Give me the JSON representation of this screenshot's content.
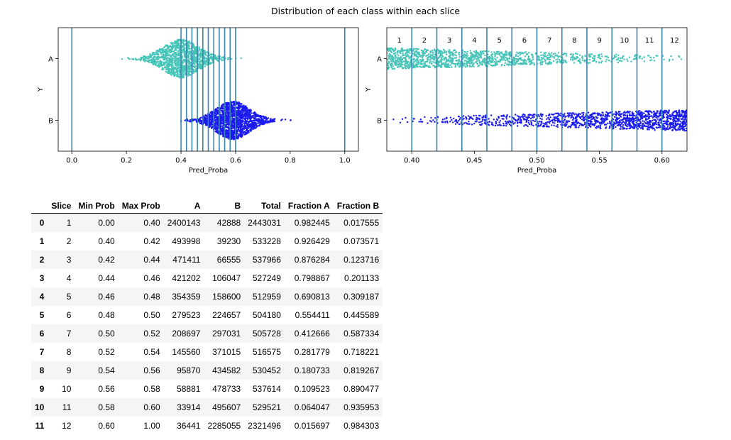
{
  "figure": {
    "title": "Distribution of each class within each slice"
  },
  "chart_data": [
    {
      "type": "scatter",
      "subtype": "swarm",
      "xlabel": "Pred_Proba",
      "ylabel": "Y",
      "xlim": [
        -0.05,
        1.05
      ],
      "xticks": [
        0.0,
        0.2,
        0.4,
        0.6,
        0.8,
        1.0
      ],
      "xtick_labels": [
        "0.0",
        "0.2",
        "0.4",
        "0.6",
        "0.8",
        "1.0"
      ],
      "categories": [
        "A",
        "B"
      ],
      "series": [
        {
          "name": "A",
          "color": "#46c4b8",
          "x_range": [
            0.14,
            0.63
          ],
          "center": 0.4
        },
        {
          "name": "B",
          "color": "#1a1af0",
          "x_range": [
            0.31,
            0.91
          ],
          "center": 0.59
        }
      ],
      "vlines": [
        0.0,
        0.4,
        0.42,
        0.44,
        0.46,
        0.48,
        0.5,
        0.52,
        0.54,
        0.56,
        0.58,
        0.6,
        1.0
      ],
      "vline_color": "#3b86b0",
      "grid": false
    },
    {
      "type": "scatter",
      "subtype": "swarm",
      "xlabel": "Pred_Proba",
      "ylabel": "Y",
      "xlim": [
        0.38,
        0.62
      ],
      "xticks": [
        0.4,
        0.45,
        0.5,
        0.55,
        0.6
      ],
      "xtick_labels": [
        "0.40",
        "0.45",
        "0.50",
        "0.55",
        "0.60"
      ],
      "categories": [
        "A",
        "B"
      ],
      "series": [
        {
          "name": "A",
          "color": "#46c4b8",
          "density": "decreasing"
        },
        {
          "name": "B",
          "color": "#1a1af0",
          "density": "increasing"
        }
      ],
      "vlines": [
        0.4,
        0.42,
        0.44,
        0.46,
        0.48,
        0.5,
        0.52,
        0.54,
        0.56,
        0.58,
        0.6
      ],
      "vline_color": "#3b86b0",
      "slice_labels": [
        "1",
        "2",
        "3",
        "4",
        "5",
        "6",
        "7",
        "8",
        "9",
        "10",
        "11",
        "12"
      ],
      "grid": false
    }
  ],
  "table": {
    "columns": [
      "Slice",
      "Min Prob",
      "Max Prob",
      "A",
      "B",
      "Total",
      "Fraction A",
      "Fraction B"
    ],
    "rows": [
      {
        "index": "0",
        "cells": [
          "1",
          "0.00",
          "0.40",
          "2400143",
          "42888",
          "2443031",
          "0.982445",
          "0.017555"
        ]
      },
      {
        "index": "1",
        "cells": [
          "2",
          "0.40",
          "0.42",
          "493998",
          "39230",
          "533228",
          "0.926429",
          "0.073571"
        ]
      },
      {
        "index": "2",
        "cells": [
          "3",
          "0.42",
          "0.44",
          "471411",
          "66555",
          "537966",
          "0.876284",
          "0.123716"
        ]
      },
      {
        "index": "3",
        "cells": [
          "4",
          "0.44",
          "0.46",
          "421202",
          "106047",
          "527249",
          "0.798867",
          "0.201133"
        ]
      },
      {
        "index": "4",
        "cells": [
          "5",
          "0.46",
          "0.48",
          "354359",
          "158600",
          "512959",
          "0.690813",
          "0.309187"
        ]
      },
      {
        "index": "5",
        "cells": [
          "6",
          "0.48",
          "0.50",
          "279523",
          "224657",
          "504180",
          "0.554411",
          "0.445589"
        ]
      },
      {
        "index": "6",
        "cells": [
          "7",
          "0.50",
          "0.52",
          "208697",
          "297031",
          "505728",
          "0.412666",
          "0.587334"
        ]
      },
      {
        "index": "7",
        "cells": [
          "8",
          "0.52",
          "0.54",
          "145560",
          "371015",
          "516575",
          "0.281779",
          "0.718221"
        ]
      },
      {
        "index": "8",
        "cells": [
          "9",
          "0.54",
          "0.56",
          "95870",
          "434582",
          "530452",
          "0.180733",
          "0.819267"
        ]
      },
      {
        "index": "9",
        "cells": [
          "10",
          "0.56",
          "0.58",
          "58881",
          "478733",
          "537614",
          "0.109523",
          "0.890477"
        ]
      },
      {
        "index": "10",
        "cells": [
          "11",
          "0.58",
          "0.60",
          "33914",
          "495607",
          "529521",
          "0.064047",
          "0.935953"
        ]
      },
      {
        "index": "11",
        "cells": [
          "12",
          "0.60",
          "1.00",
          "36441",
          "2285055",
          "2321496",
          "0.015697",
          "0.984303"
        ]
      }
    ]
  }
}
